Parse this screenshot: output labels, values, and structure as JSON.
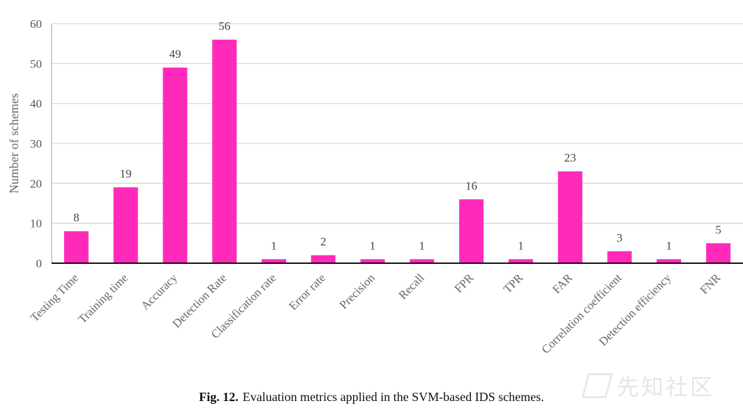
{
  "chart_data": {
    "type": "bar",
    "title": "",
    "xlabel": "",
    "ylabel": "Number of schemes",
    "ylim": [
      0,
      60
    ],
    "yticks": [
      0,
      10,
      20,
      30,
      40,
      50,
      60
    ],
    "grid": true,
    "bar_color": "#ff2ab9",
    "grid_color": "#d9d9d9",
    "categories": [
      "Testing Time",
      "Training time",
      "Accuracy",
      "Detection Rate",
      "Classification rate",
      "Error rate",
      "Precision",
      "Recall",
      "FPR",
      "TPR",
      "FAR",
      "Correlation coefficient",
      "Detection efficiency",
      "FNR"
    ],
    "values": [
      8,
      19,
      49,
      56,
      1,
      2,
      1,
      1,
      16,
      1,
      23,
      3,
      1,
      5
    ],
    "data_labels": [
      "8",
      "19",
      "49",
      "56",
      "1",
      "2",
      "1",
      "1",
      "16",
      "1",
      "23",
      "3",
      "1",
      "5"
    ]
  },
  "caption": {
    "label": "Fig. 12.",
    "text": "Evaluation metrics applied in the SVM-based IDS schemes."
  },
  "watermark": {
    "text": "先知社区",
    "logo_icon": "xianzhi-logo-icon"
  }
}
